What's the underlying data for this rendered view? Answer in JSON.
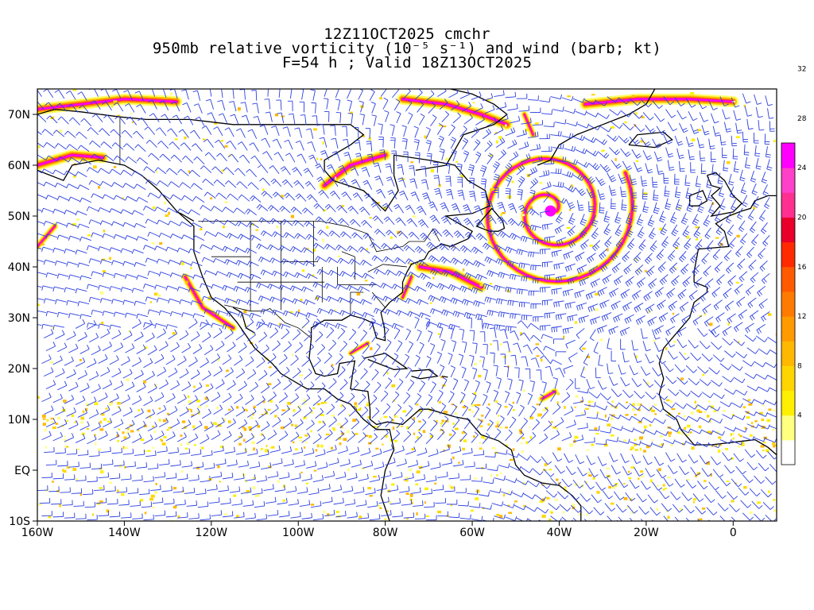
{
  "title": {
    "line1": "12Z11OCT2025 cmchr",
    "line2": "950mb relative vorticity (10⁻⁵ s⁻¹) and wind (barb; kt)",
    "line3": "F=54 h ; Valid 18Z13OCT2025"
  },
  "map": {
    "lon_range": [
      -160,
      10
    ],
    "lat_range": [
      -10,
      75
    ],
    "x_ticks": [
      {
        "lon": -160,
        "label": "160W"
      },
      {
        "lon": -140,
        "label": "140W"
      },
      {
        "lon": -120,
        "label": "120W"
      },
      {
        "lon": -100,
        "label": "100W"
      },
      {
        "lon": -80,
        "label": "80W"
      },
      {
        "lon": -60,
        "label": "60W"
      },
      {
        "lon": -40,
        "label": "40W"
      },
      {
        "lon": -20,
        "label": "20W"
      },
      {
        "lon": 0,
        "label": "0"
      }
    ],
    "y_ticks": [
      {
        "lat": 70,
        "label": "70N"
      },
      {
        "lat": 60,
        "label": "60N"
      },
      {
        "lat": 50,
        "label": "50N"
      },
      {
        "lat": 40,
        "label": "40N"
      },
      {
        "lat": 30,
        "label": "30N"
      },
      {
        "lat": 20,
        "label": "20N"
      },
      {
        "lat": 10,
        "label": "10N"
      },
      {
        "lat": 0,
        "label": "EQ"
      },
      {
        "lat": -10,
        "label": "10S"
      }
    ],
    "barb_color": "#2b3fe0",
    "coastline_color": "#000000",
    "features": [
      {
        "name": "low-center-north-atlantic",
        "lon": -42,
        "lat": 51,
        "max_vorticity": 34
      },
      {
        "name": "vorticity-band-east-us",
        "lon": -72,
        "lat": 37,
        "max_vorticity": 30
      },
      {
        "name": "vorticity-band-hudson-bay",
        "lon": -88,
        "lat": 58,
        "max_vorticity": 30
      },
      {
        "name": "vorticity-band-greenland",
        "lon": -55,
        "lat": 69,
        "max_vorticity": 32
      },
      {
        "name": "vorticity-band-alaska",
        "lon": -150,
        "lat": 61,
        "max_vorticity": 30
      },
      {
        "name": "vorticity-band-arctic-west",
        "lon": -140,
        "lat": 71,
        "max_vorticity": 30
      },
      {
        "name": "vorticity-spot-tropical-atlantic",
        "lon": -42,
        "lat": 15,
        "max_vorticity": 28
      }
    ]
  },
  "colorbar": {
    "levels": [
      "4",
      "8",
      "12",
      "16",
      "20",
      "24",
      "28",
      "32"
    ],
    "colors": [
      "#ffffff",
      "#ffff80",
      "#ffef00",
      "#ffd500",
      "#ffb800",
      "#ff9a00",
      "#ff7a00",
      "#ff5a00",
      "#ff2a00",
      "#e8002a",
      "#ff3090",
      "#ff40c8",
      "#ff00ff"
    ]
  }
}
